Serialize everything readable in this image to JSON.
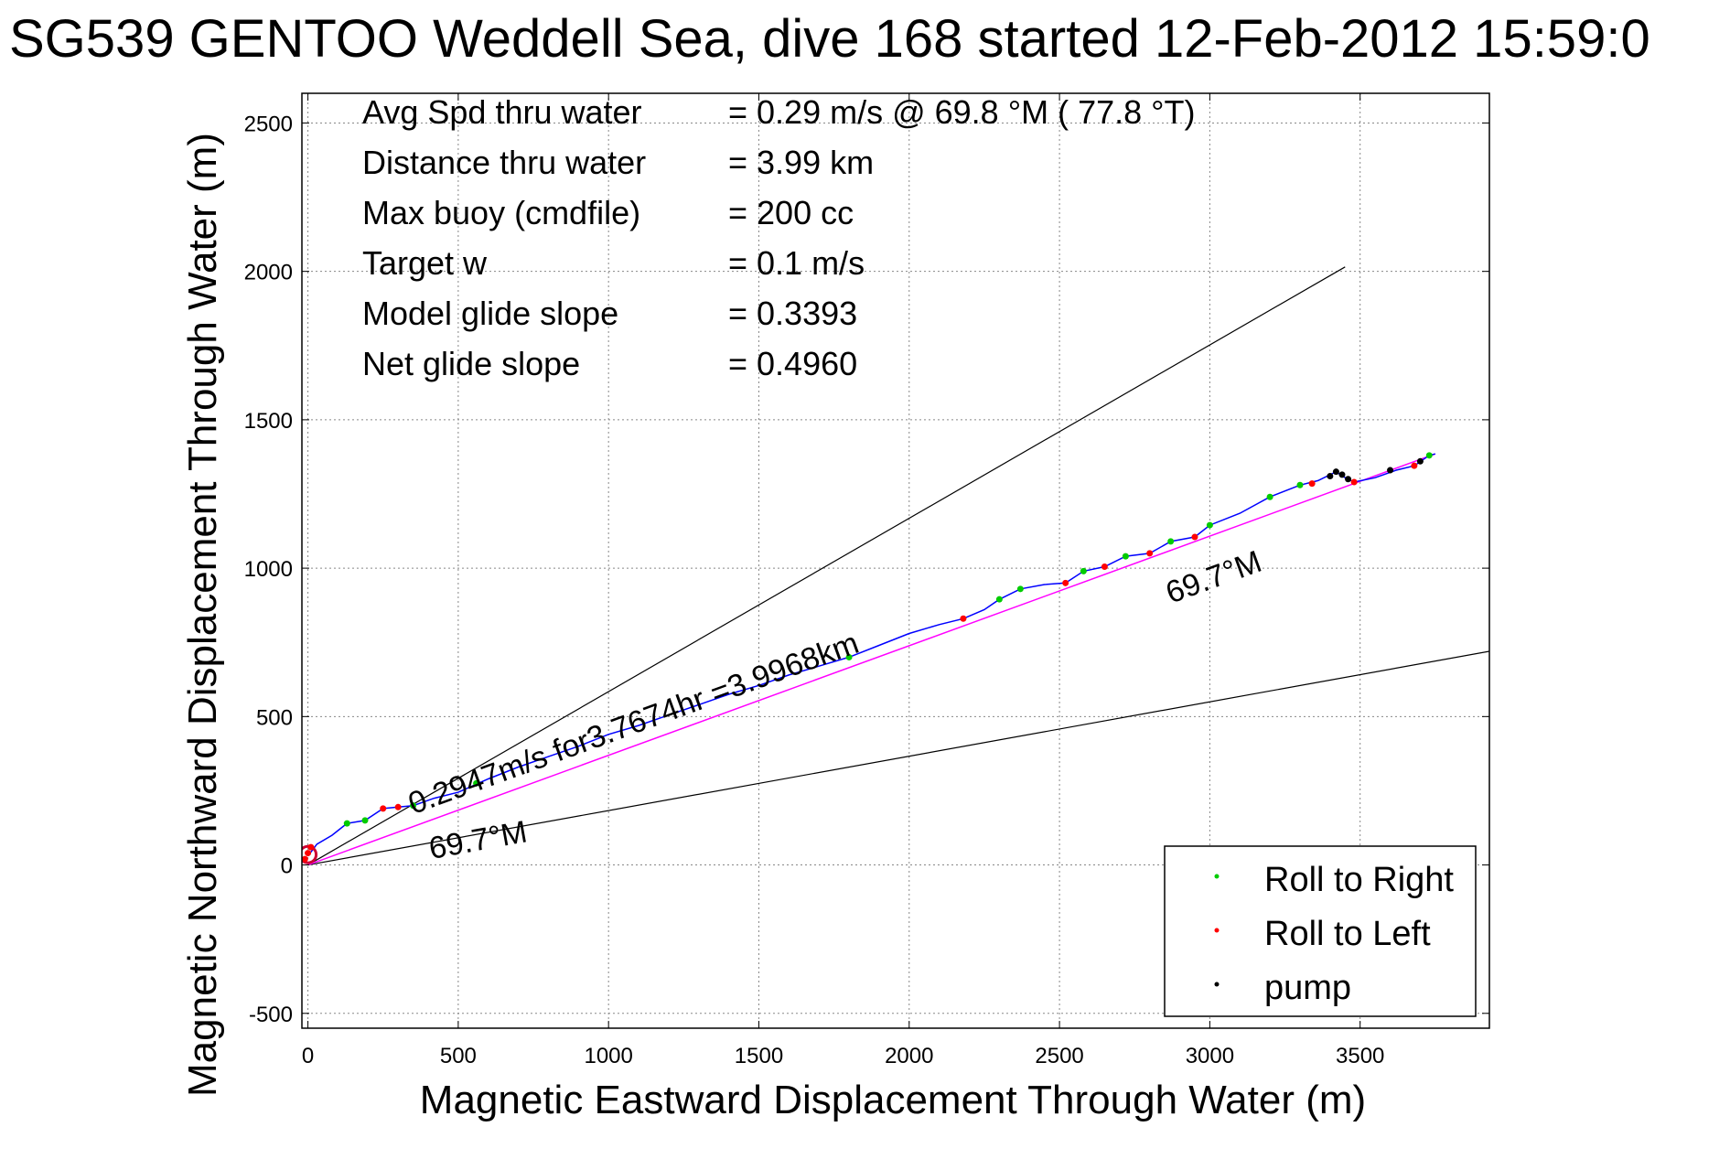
{
  "chart_data": {
    "type": "line",
    "title": "SG539 GENTOO Weddell Sea, dive 168 started 12-Feb-2012 15:59:0",
    "xlabel": "Magnetic Eastward Displacement Through Water (m)",
    "ylabel": "Magnetic Northward Displacement Through Water (m)",
    "xlim": [
      -20,
      3930
    ],
    "ylim": [
      -550,
      2600
    ],
    "xticks": [
      0,
      500,
      1000,
      1500,
      2000,
      2500,
      3000,
      3500
    ],
    "yticks": [
      -500,
      0,
      500,
      1000,
      1500,
      2000,
      2500
    ],
    "grid": true,
    "legend_position": "bottom-right",
    "info_lines": [
      {
        "label": "Avg Spd thru water",
        "value": "=  0.29 m/s @  69.8 °M ( 77.8 °T)"
      },
      {
        "label": "Distance thru water",
        "value": "=  3.99 km"
      },
      {
        "label": "Max buoy (cmdfile)",
        "value": "= 200 cc"
      },
      {
        "label": "Target w",
        "value": "= 0.1 m/s"
      },
      {
        "label": "Model glide slope",
        "value": "= 0.3393"
      },
      {
        "label": "Net glide slope",
        "value": "= 0.4960"
      }
    ],
    "annotations": {
      "track_label": "0.2947m/s for3.7674hr =3.9968km",
      "heading_label_upper": "69.7°M",
      "heading_label_lower": "69.7°M"
    },
    "colors": {
      "track": "#0000ff",
      "heading_line": "#ff00ff",
      "roll_right": "#00cc00",
      "roll_left": "#ff0000",
      "pump": "#000000",
      "envelope": "#000000",
      "start_marker": "#cc0033"
    },
    "envelope_lines": [
      {
        "x": [
          0,
          3450
        ],
        "y": [
          0,
          2015
        ]
      },
      {
        "x": [
          0,
          3930
        ],
        "y": [
          0,
          720
        ]
      }
    ],
    "heading_line": {
      "x": [
        0,
        3750
      ],
      "y": [
        0,
        1385
      ]
    },
    "track": {
      "x": [
        0,
        30,
        80,
        130,
        190,
        250,
        300,
        350,
        420,
        500,
        600,
        700,
        800,
        900,
        1000,
        1100,
        1200,
        1300,
        1400,
        1500,
        1600,
        1700,
        1800,
        1900,
        2000,
        2100,
        2180,
        2250,
        2300,
        2370,
        2450,
        2520,
        2580,
        2650,
        2720,
        2800,
        2870,
        2950,
        3000,
        3100,
        3200,
        3300,
        3360,
        3420,
        3450,
        3480,
        3550,
        3620,
        3680,
        3730,
        3750
      ],
      "y": [
        30,
        70,
        100,
        140,
        150,
        190,
        195,
        200,
        225,
        245,
        290,
        330,
        365,
        400,
        440,
        470,
        505,
        540,
        575,
        605,
        640,
        670,
        700,
        740,
        780,
        810,
        830,
        860,
        895,
        930,
        945,
        950,
        990,
        1005,
        1040,
        1050,
        1090,
        1105,
        1145,
        1185,
        1240,
        1280,
        1295,
        1325,
        1305,
        1290,
        1305,
        1330,
        1345,
        1380,
        1385
      ]
    },
    "series": [
      {
        "name": "Roll to Right",
        "marker": "dot",
        "x": [
          130,
          190,
          350,
          560,
          1800,
          2300,
          2370,
          2580,
          2720,
          2870,
          3000,
          3200,
          3300,
          3730
        ],
        "y": [
          140,
          150,
          200,
          275,
          700,
          895,
          930,
          990,
          1040,
          1090,
          1145,
          1240,
          1280,
          1380
        ]
      },
      {
        "name": "Roll to Left",
        "marker": "dot",
        "x": [
          -10,
          0,
          10,
          250,
          300,
          2180,
          2520,
          2650,
          2800,
          2950,
          3340,
          3480,
          3680
        ],
        "y": [
          20,
          40,
          60,
          190,
          195,
          830,
          950,
          1005,
          1050,
          1105,
          1285,
          1290,
          1345
        ]
      },
      {
        "name": "pump",
        "marker": "dot",
        "x": [
          3400,
          3420,
          3440,
          3460,
          3600,
          3700
        ],
        "y": [
          1310,
          1325,
          1315,
          1300,
          1330,
          1360
        ]
      }
    ]
  }
}
